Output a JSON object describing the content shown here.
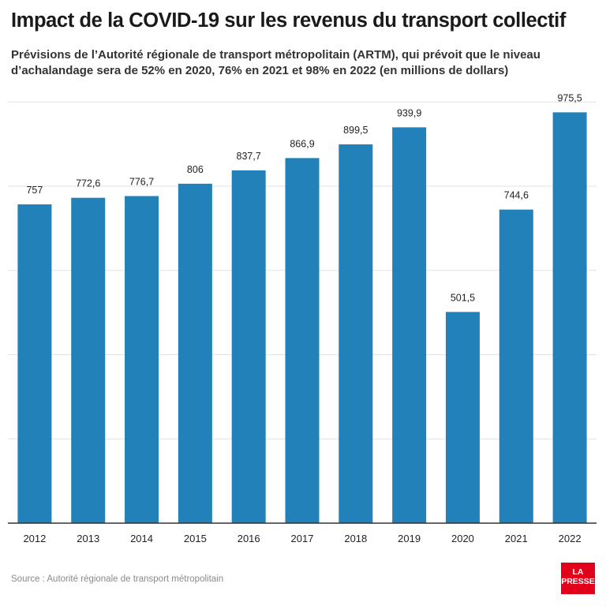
{
  "title": "Impact de la COVID-19 sur les revenus du transport collectif",
  "subtitle": "Prévisions de l’Autorité régionale de transport métropolitain (ARTM), qui prévoit que le niveau d’achalandage sera de 52% en 2020, 76% en 2021 et 98% en 2022 (en millions de dollars)",
  "source": "Source : Autorité régionale de transport métropolitain",
  "logo": {
    "line1": "LA",
    "line2": "PRESSE"
  },
  "colors": {
    "bar": "#2281b9",
    "grid": "#e3e3e3",
    "axis": "#333333",
    "logo": "#e2001a"
  },
  "chart_data": {
    "type": "bar",
    "categories": [
      "2012",
      "2013",
      "2014",
      "2015",
      "2016",
      "2017",
      "2018",
      "2019",
      "2020",
      "2021",
      "2022"
    ],
    "values": [
      757,
      772.6,
      776.7,
      806,
      837.7,
      866.9,
      899.5,
      939.9,
      501.5,
      744.6,
      975.5
    ],
    "value_labels": [
      "757",
      "772,6",
      "776,7",
      "806",
      "837,7",
      "866,9",
      "899,5",
      "939,9",
      "501,5",
      "744,6",
      "975,5"
    ],
    "ylim": [
      0,
      1000
    ],
    "grid": true,
    "xlabel": "",
    "ylabel": ""
  }
}
